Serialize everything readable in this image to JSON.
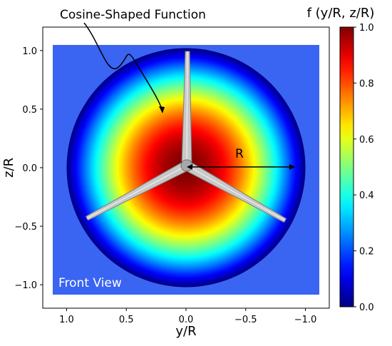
{
  "chart_data": {
    "type": "heatmap",
    "title": "",
    "xlabel": "y/R",
    "ylabel": "z/R",
    "x_ticks": [
      "1.0",
      "0.5",
      "0.0",
      "−0.5",
      "−1.0"
    ],
    "x_tick_values": [
      1.0,
      0.5,
      0.0,
      -0.5,
      -1.0
    ],
    "y_ticks": [
      "1.0",
      "0.5",
      "0.0",
      "−0.5",
      "−1.0"
    ],
    "y_tick_values": [
      1.0,
      0.5,
      0.0,
      -0.5,
      -1.0
    ],
    "xlim": [
      1.2,
      -1.2
    ],
    "ylim": [
      -1.2,
      1.2
    ],
    "x_axis_inverted": true,
    "function": "f(r) = cos(pi/2 * r/R) for r < R, otherwise 0",
    "colorbar": {
      "title": "f (y/R, z/R)",
      "ticks": [
        "0.0",
        "0.2",
        "0.4",
        "0.6",
        "0.8",
        "1.0"
      ],
      "tick_values": [
        0.0,
        0.2,
        0.4,
        0.6,
        0.8,
        1.0
      ],
      "range": [
        0.0,
        1.0
      ],
      "colormap": "jet",
      "position": "right"
    },
    "annotations": {
      "function_label": "Cosine-Shaped Function",
      "radius_label": "R",
      "view_label": "Front View"
    },
    "grid": false,
    "overlay": "three-bladed rotor, gray"
  }
}
